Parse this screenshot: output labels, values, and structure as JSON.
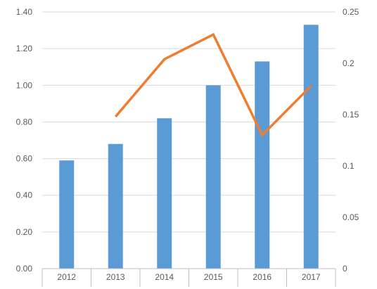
{
  "chart_data": {
    "type": "bar",
    "categories": [
      "2012",
      "2013",
      "2014",
      "2015",
      "2016",
      "2017"
    ],
    "series": [
      {
        "kind": "bar",
        "axis": "left",
        "color": "#5b9bd5",
        "values": [
          0.59,
          0.68,
          0.82,
          1.0,
          1.13,
          1.33
        ]
      },
      {
        "kind": "line",
        "axis": "right",
        "color": "#ed7d31",
        "values": [
          null,
          0.148,
          0.204,
          0.228,
          0.13,
          0.178
        ]
      }
    ],
    "y_left": {
      "min": 0,
      "max": 1.4,
      "ticks": [
        "0.00",
        "0.20",
        "0.40",
        "0.60",
        "0.80",
        "1.00",
        "1.20",
        "1.40"
      ]
    },
    "y_right": {
      "min": 0,
      "max": 0.25,
      "ticks": [
        "0",
        "0.05",
        "0.1",
        "0.15",
        "0.2",
        "0.25"
      ]
    },
    "grid": true,
    "title": "",
    "xlabel": "",
    "ylabel": ""
  }
}
